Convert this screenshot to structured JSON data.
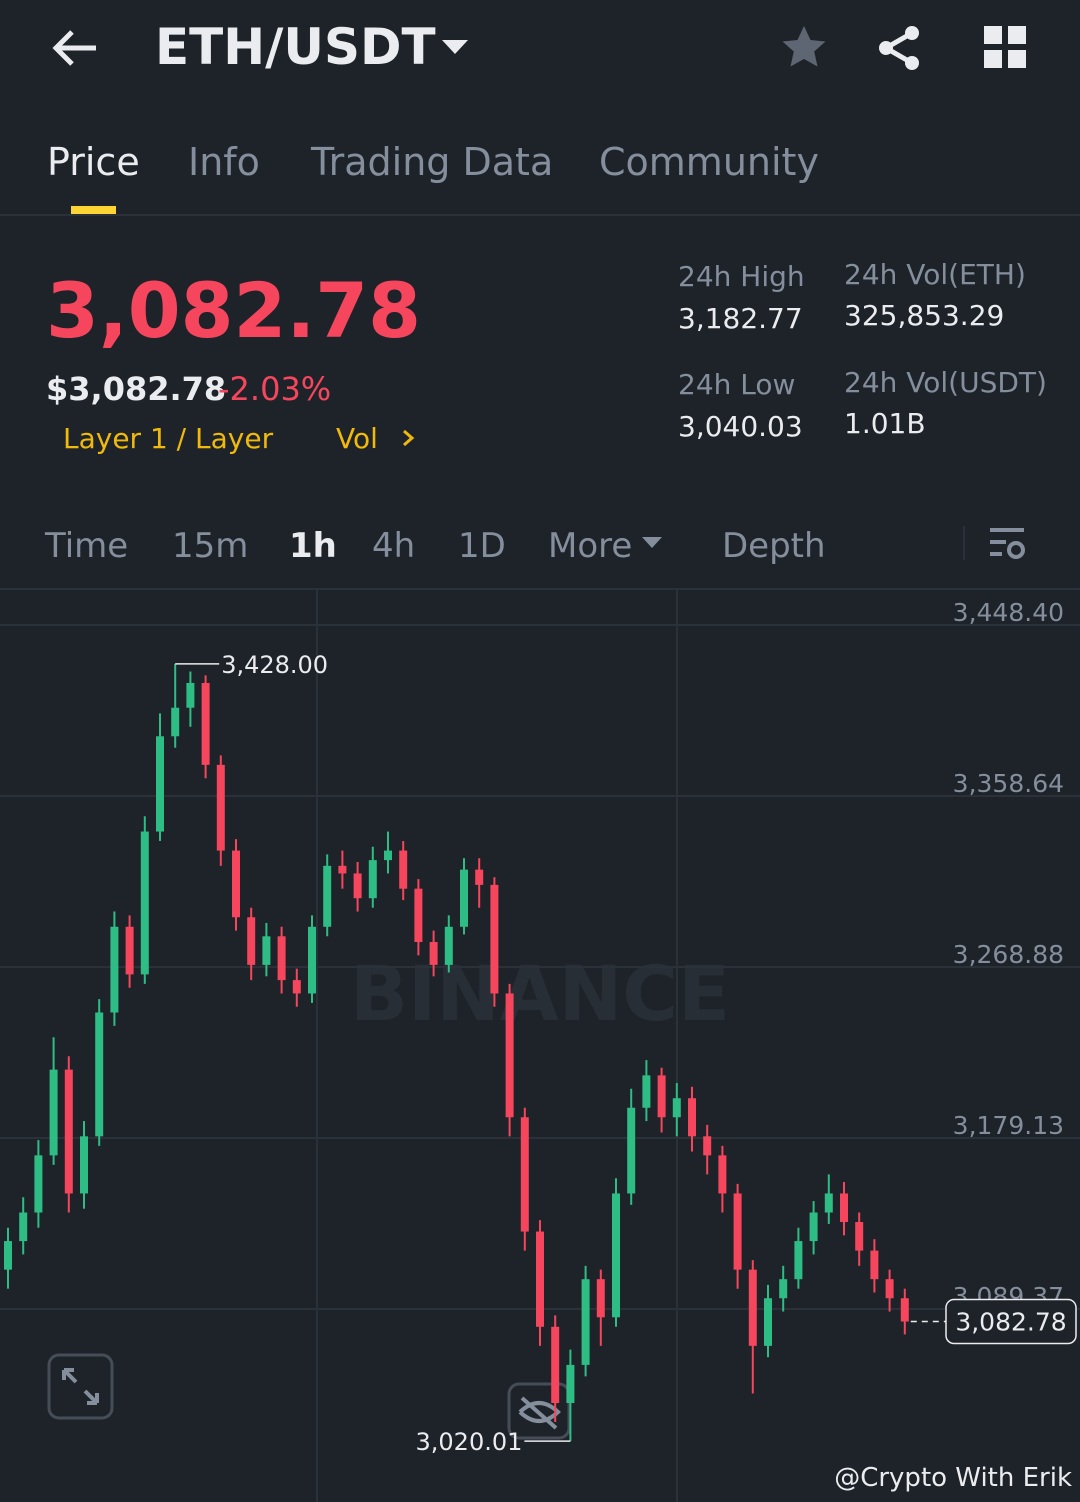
{
  "header": {
    "title": "ETH/USDT"
  },
  "tabs": [
    "Price",
    "Info",
    "Trading Data",
    "Community"
  ],
  "price": {
    "last": "3,082.78",
    "usd": "$3,082.78",
    "change": "-2.03%",
    "tags": [
      "Layer 1 / Layer",
      "Vol"
    ]
  },
  "stats": [
    {
      "label": "24h High",
      "value": "3,182.77"
    },
    {
      "label": "24h Vol(ETH)",
      "value": "325,853.29"
    },
    {
      "label": "24h Low",
      "value": "3,040.03"
    },
    {
      "label": "24h Vol(USDT)",
      "value": "1.01B"
    }
  ],
  "timeframes": [
    "Time",
    "15m",
    "1h",
    "4h",
    "1D",
    "More",
    "Depth"
  ],
  "chart_data": {
    "type": "candlestick",
    "watermark": "BINANCE",
    "credit": "@Crypto With Erik",
    "up_color": "#2ebd85",
    "down_color": "#f6465d",
    "ylim": [
      2991.7,
      3466.8
    ],
    "yticks": [
      {
        "value": 3448.4,
        "label": "3,448.40"
      },
      {
        "value": 3358.64,
        "label": "3,358.64"
      },
      {
        "value": 3268.88,
        "label": "3,268.88"
      },
      {
        "value": 3179.13,
        "label": "3,179.13"
      },
      {
        "value": 3089.37,
        "label": "3,089.37"
      }
    ],
    "grid": true,
    "opens": [
      3110,
      3125,
      3140,
      3170,
      3215,
      3150,
      3180,
      3245,
      3290,
      3265,
      3340,
      3390,
      3405,
      3418,
      3375,
      3330,
      3295,
      3270,
      3285,
      3262,
      3255,
      3290,
      3322,
      3318,
      3305,
      3325,
      3330,
      3310,
      3282,
      3270,
      3290,
      3320,
      3312,
      3255,
      3190,
      3130,
      3080,
      3040,
      3060,
      3105,
      3085,
      3150,
      3195,
      3212,
      3190,
      3200,
      3180,
      3170,
      3150,
      3110,
      3070,
      3095,
      3105,
      3125,
      3140,
      3150,
      3135,
      3120,
      3105,
      3095
    ],
    "highs": [
      3132,
      3148,
      3178,
      3232,
      3222,
      3188,
      3252,
      3298,
      3296,
      3348,
      3402,
      3428,
      3424,
      3422,
      3380,
      3336,
      3300,
      3292,
      3290,
      3268,
      3296,
      3328,
      3330,
      3324,
      3332,
      3340,
      3335,
      3315,
      3288,
      3296,
      3326,
      3326,
      3316,
      3260,
      3195,
      3136,
      3086,
      3068,
      3112,
      3110,
      3158,
      3205,
      3220,
      3216,
      3208,
      3206,
      3186,
      3175,
      3155,
      3115,
      3102,
      3112,
      3132,
      3146,
      3160,
      3156,
      3140,
      3126,
      3110,
      3100
    ],
    "lows": [
      3100,
      3118,
      3132,
      3165,
      3140,
      3142,
      3175,
      3238,
      3258,
      3260,
      3335,
      3384,
      3395,
      3368,
      3322,
      3288,
      3262,
      3264,
      3255,
      3248,
      3250,
      3285,
      3310,
      3298,
      3300,
      3318,
      3304,
      3275,
      3264,
      3266,
      3286,
      3300,
      3248,
      3180,
      3120,
      3070,
      3030,
      3020.01,
      3054,
      3070,
      3080,
      3144,
      3188,
      3182,
      3180,
      3172,
      3160,
      3140,
      3100,
      3045,
      3064,
      3088,
      3100,
      3118,
      3134,
      3128,
      3112,
      3098,
      3088,
      3076
    ],
    "closes": [
      3125,
      3140,
      3170,
      3215,
      3150,
      3180,
      3245,
      3290,
      3265,
      3340,
      3390,
      3405,
      3418,
      3375,
      3330,
      3295,
      3270,
      3285,
      3262,
      3255,
      3290,
      3322,
      3318,
      3305,
      3325,
      3330,
      3310,
      3282,
      3270,
      3290,
      3320,
      3312,
      3255,
      3190,
      3130,
      3080,
      3040,
      3060,
      3105,
      3085,
      3150,
      3195,
      3212,
      3190,
      3200,
      3180,
      3170,
      3150,
      3110,
      3070,
      3095,
      3105,
      3125,
      3140,
      3150,
      3135,
      3120,
      3105,
      3095,
      3082.78
    ],
    "high_marker": {
      "value": 3428,
      "label": "3,428.00"
    },
    "low_marker": {
      "value": 3020.01,
      "label": "3,020.01"
    },
    "last_price": {
      "value": 3082.78,
      "label": "3,082.78"
    }
  }
}
